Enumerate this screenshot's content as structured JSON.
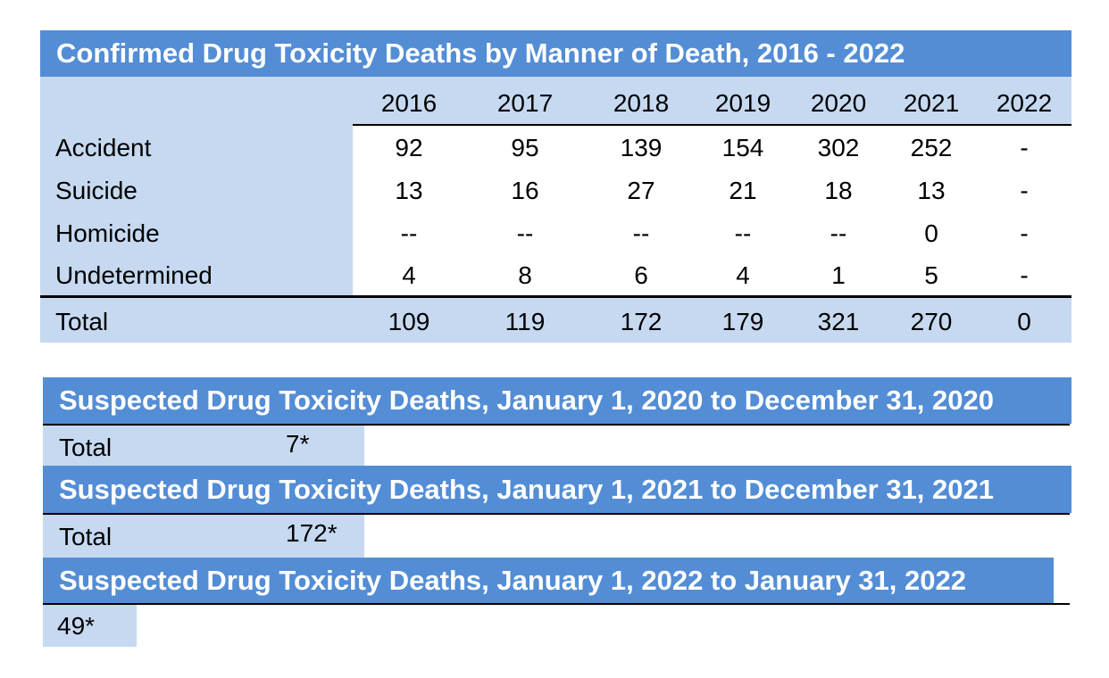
{
  "confirmed": {
    "title": "Confirmed Drug Toxicity Deaths by Manner of Death, 2016 - 2022",
    "years": [
      "2016",
      "2017",
      "2018",
      "2019",
      "2020",
      "2021",
      "2022"
    ],
    "rows": [
      {
        "label": "Accident",
        "values": [
          "92",
          "95",
          "139",
          "154",
          "302",
          "252",
          "-"
        ]
      },
      {
        "label": "Suicide",
        "values": [
          "13",
          "16",
          "27",
          "21",
          "18",
          "13",
          "-"
        ]
      },
      {
        "label": "Homicide",
        "values": [
          "--",
          "--",
          "--",
          "--",
          "--",
          "0",
          "-"
        ]
      },
      {
        "label": "Undetermined",
        "values": [
          "4",
          "8",
          "6",
          "4",
          "1",
          "5",
          "-"
        ]
      }
    ],
    "total": {
      "label": "Total",
      "values": [
        "109",
        "119",
        "172",
        "179",
        "321",
        "270",
        "0"
      ]
    }
  },
  "suspected": [
    {
      "title": "Suspected Drug Toxicity Deaths, January 1, 2020 to December 31, 2020",
      "label": "Total",
      "value": "7*"
    },
    {
      "title": "Suspected Drug Toxicity Deaths, January 1, 2021 to December 31, 2021",
      "label": "Total",
      "value": "172*"
    },
    {
      "title": "Suspected Drug Toxicity Deaths, January 1, 2022 to January 31, 2022",
      "value": "49*"
    }
  ],
  "colors": {
    "header_band": "#538dd5",
    "label_fill": "#c6d9f1",
    "text_on_band": "#ffffff"
  }
}
